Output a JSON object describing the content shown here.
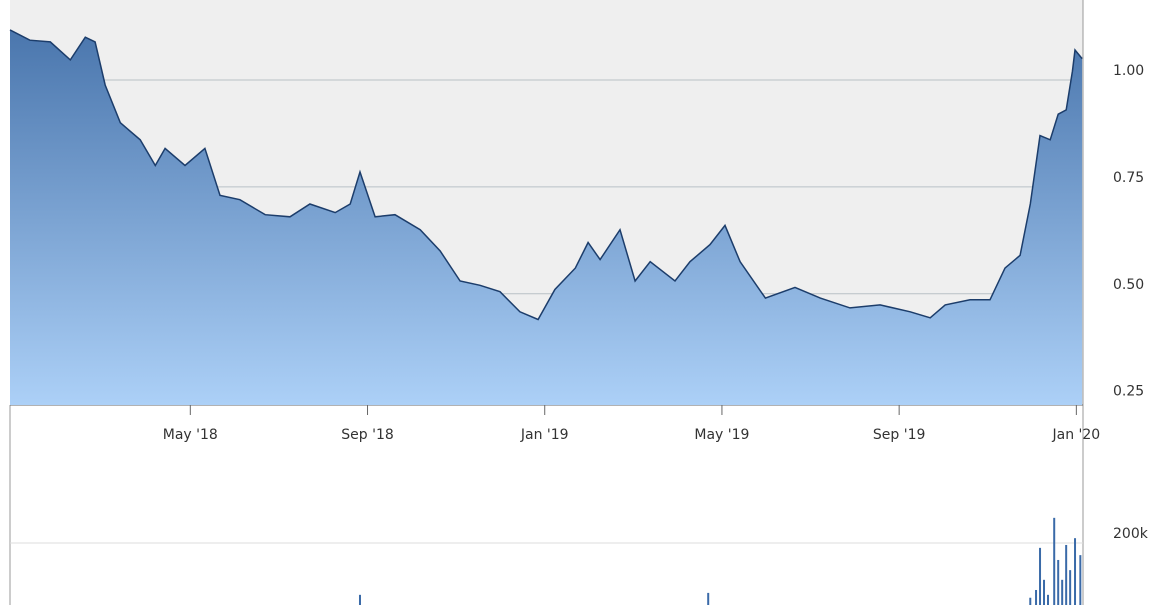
{
  "chart_data": [
    {
      "type": "area",
      "color": "#1c3d6b",
      "area_colors": [
        "#4a76ad",
        "#acd0f7"
      ],
      "grid": true,
      "x": [
        -0.07,
        0.38,
        0.84,
        1.29,
        1.63,
        1.85,
        2.08,
        2.42,
        2.87,
        3.21,
        3.43,
        3.88,
        4.33,
        4.67,
        5.12,
        5.69,
        6.25,
        6.7,
        7.27,
        7.61,
        7.83,
        8.17,
        8.62,
        9.19,
        9.64,
        10.09,
        10.54,
        10.99,
        11.44,
        11.85,
        12.23,
        12.69,
        12.98,
        13.25,
        13.7,
        14.04,
        14.38,
        14.94,
        15.28,
        15.73,
        16.07,
        16.41,
        16.98,
        17.65,
        18.22,
        18.89,
        19.57,
        20.25,
        20.7,
        21.04,
        21.6,
        22.05,
        22.39,
        22.73,
        22.96,
        23.18,
        23.41,
        23.59,
        23.77,
        23.91,
        23.97,
        24.13
      ],
      "values": [
        1.117,
        1.093,
        1.089,
        1.047,
        1.1,
        1.089,
        0.988,
        0.9,
        0.86,
        0.8,
        0.84,
        0.8,
        0.84,
        0.73,
        0.72,
        0.685,
        0.68,
        0.71,
        0.69,
        0.71,
        0.785,
        0.68,
        0.685,
        0.65,
        0.6,
        0.53,
        0.52,
        0.505,
        0.458,
        0.44,
        0.51,
        0.56,
        0.62,
        0.58,
        0.65,
        0.53,
        0.575,
        0.53,
        0.575,
        0.615,
        0.66,
        0.575,
        0.49,
        0.515,
        0.49,
        0.467,
        0.474,
        0.458,
        0.444,
        0.474,
        0.486,
        0.486,
        0.56,
        0.59,
        0.71,
        0.87,
        0.86,
        0.92,
        0.93,
        1.02,
        1.07,
        1.05
      ],
      "xlim": [
        -0.07,
        24.15
      ],
      "ylim": [
        0.24,
        1.187
      ],
      "xticks": [
        {
          "value": 4,
          "label": "May '18"
        },
        {
          "value": 8,
          "label": "Sep '18"
        },
        {
          "value": 12,
          "label": "Jan '19"
        },
        {
          "value": 16,
          "label": "May '19"
        },
        {
          "value": 20,
          "label": "Sep '19"
        },
        {
          "value": 24,
          "label": "Jan '20"
        }
      ],
      "yticks": [
        0.25,
        {
          "value": 0.5,
          "label": "0.50"
        },
        0.75,
        {
          "value": 1,
          "label": "1.00"
        }
      ]
    },
    {
      "type": "bar",
      "color": "#3a6aa8",
      "grid": true,
      "x": [
        7.83,
        15.69,
        22.96,
        23.09,
        23.18,
        23.27,
        23.36,
        23.5,
        23.59,
        23.68,
        23.77,
        23.86,
        23.97,
        24.09
      ],
      "values": [
        93000,
        97000,
        87000,
        103000,
        190000,
        124000,
        93000,
        252000,
        165000,
        124000,
        196000,
        144000,
        210000,
        175000
      ],
      "xlim": [
        -0.07,
        24.15
      ],
      "ylim": [
        72000,
        388000
      ],
      "yticks": [
        {
          "value": 200000,
          "label": "200k"
        }
      ]
    }
  ]
}
